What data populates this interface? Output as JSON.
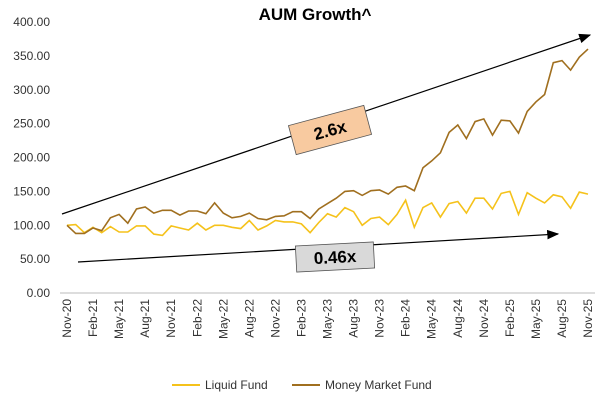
{
  "chart_data": {
    "type": "line",
    "title": "AUM Growth^",
    "categories": [
      "Nov-20",
      null,
      null,
      "Feb-21",
      null,
      null,
      "May-21",
      null,
      null,
      "Aug-21",
      null,
      null,
      "Nov-21",
      null,
      null,
      "Feb-22",
      null,
      null,
      "May-22",
      null,
      null,
      "Aug-22",
      null,
      null,
      "Nov-22",
      null,
      null,
      "Feb-23",
      null,
      null,
      "May-23",
      null,
      null,
      "Aug-23",
      null,
      null,
      "Nov-23",
      null,
      null,
      "Feb-24",
      null,
      null,
      "May-24",
      null,
      null,
      "Aug-24",
      null,
      null,
      "Nov-24",
      null,
      null,
      "Feb-25",
      null,
      null,
      "May-25",
      null,
      null,
      "Aug-25",
      null,
      null,
      "Nov-25"
    ],
    "series": [
      {
        "name": "Liquid Fund",
        "color": "#f5c21b",
        "values": [
          100,
          101,
          89,
          97,
          89,
          98,
          90,
          90,
          99,
          99,
          87,
          85,
          99,
          96,
          93,
          103,
          93,
          100,
          100,
          97,
          95,
          107,
          93,
          99,
          107,
          105,
          105,
          102,
          89,
          104,
          117,
          112,
          126,
          120,
          100,
          110,
          112,
          101,
          116,
          137,
          97,
          126,
          133,
          112,
          132,
          135,
          118,
          140,
          140,
          124,
          147,
          150,
          116,
          148,
          140,
          133,
          145,
          142,
          125,
          149,
          146
        ]
      },
      {
        "name": "Money Market Fund",
        "color": "#a06f1f",
        "values": [
          100,
          88,
          88,
          96,
          92,
          111,
          116,
          103,
          124,
          127,
          118,
          122,
          122,
          115,
          121,
          121,
          117,
          133,
          118,
          111,
          113,
          118,
          110,
          108,
          113,
          114,
          120,
          120,
          110,
          124,
          132,
          140,
          150,
          151,
          144,
          151,
          152,
          146,
          156,
          158,
          151,
          185,
          195,
          207,
          237,
          248,
          228,
          253,
          257,
          233,
          255,
          254,
          236,
          268,
          282,
          293,
          340,
          343,
          329,
          348,
          360
        ]
      }
    ],
    "ylim": [
      0,
      400
    ],
    "yticks": [
      {
        "value": 0,
        "label": "0.00"
      },
      {
        "value": 50,
        "label": "50.00"
      },
      {
        "value": 100,
        "label": "100.00"
      },
      {
        "value": 150,
        "label": "150.00"
      },
      {
        "value": 200,
        "label": "200.00"
      },
      {
        "value": 250,
        "label": "250.00"
      },
      {
        "value": 300,
        "label": "300.00"
      },
      {
        "value": 350,
        "label": "350.00"
      },
      {
        "value": 400,
        "label": "400.00"
      }
    ],
    "annotations": [
      "2.6x",
      "0.46x"
    ],
    "legend": "bottom"
  }
}
